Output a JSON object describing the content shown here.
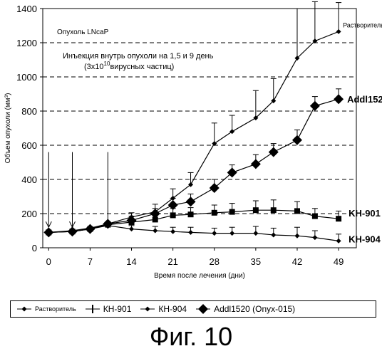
{
  "chart_data": {
    "type": "line",
    "ylabel": "Объем опухоли (мм³)",
    "xlabel": "Время после лечения (дни)",
    "xticks": [
      0,
      7,
      14,
      21,
      28,
      35,
      42,
      49
    ],
    "yticks": [
      0,
      200,
      400,
      600,
      800,
      1000,
      1200,
      1400
    ],
    "xlim": [
      -1,
      52
    ],
    "ylim": [
      0,
      1400
    ],
    "grid": "horizontal dashed",
    "annotations": {
      "tumor": "Опухоль LNcaP",
      "injection_line1": "Инъекция внутрь опухоли на 1,5 и 9 день",
      "injection_line2_pre": "(3x10",
      "injection_line2_sup": "10",
      "injection_line2_post": "вирусных частиц)"
    },
    "arrows_x": [
      0,
      4,
      10
    ],
    "series": [
      {
        "name": "Растворитель",
        "end_label": "Растворитель",
        "color": "#000000",
        "marker": "small-diamond",
        "x": [
          0,
          4,
          7,
          10,
          14,
          18,
          21,
          24,
          28,
          31,
          35,
          38,
          42,
          45,
          49
        ],
        "values": [
          90,
          100,
          115,
          140,
          180,
          210,
          290,
          370,
          610,
          680,
          760,
          860,
          1110,
          1210,
          1265
        ],
        "errors": [
          0,
          0,
          0,
          0,
          25,
          45,
          55,
          70,
          120,
          95,
          160,
          130,
          290,
          230,
          170
        ]
      },
      {
        "name": "КН-901",
        "end_label": "KH-901",
        "color": "#000000",
        "marker": "square",
        "x": [
          0,
          4,
          7,
          10,
          14,
          18,
          21,
          24,
          28,
          31,
          35,
          38,
          42,
          45,
          49
        ],
        "values": [
          90,
          95,
          110,
          135,
          150,
          165,
          190,
          195,
          205,
          210,
          220,
          220,
          215,
          185,
          170
        ],
        "errors": [
          0,
          0,
          0,
          0,
          20,
          30,
          40,
          40,
          45,
          50,
          55,
          60,
          55,
          45,
          45
        ]
      },
      {
        "name": "КН-904",
        "end_label": "KH-904",
        "color": "#000000",
        "marker": "small-diamond",
        "x": [
          0,
          4,
          7,
          10,
          14,
          18,
          21,
          24,
          28,
          31,
          35,
          38,
          42,
          45,
          49
        ],
        "values": [
          90,
          95,
          110,
          130,
          110,
          100,
          95,
          90,
          85,
          85,
          85,
          75,
          70,
          60,
          40
        ],
        "errors": [
          0,
          0,
          0,
          0,
          20,
          25,
          25,
          30,
          30,
          35,
          40,
          40,
          50,
          40,
          40
        ]
      },
      {
        "name": "Addl1520 (Onyx-015)",
        "end_label": "Addl1520",
        "color": "#000000",
        "marker": "diamond",
        "x": [
          0,
          4,
          7,
          10,
          14,
          18,
          21,
          24,
          28,
          31,
          35,
          38,
          42,
          45,
          49
        ],
        "values": [
          90,
          95,
          110,
          140,
          160,
          200,
          250,
          270,
          350,
          440,
          490,
          560,
          630,
          830,
          870
        ],
        "errors": [
          0,
          0,
          0,
          0,
          25,
          30,
          40,
          45,
          50,
          45,
          55,
          50,
          60,
          55,
          60
        ]
      }
    ]
  },
  "legend": [
    {
      "label": "Растворитель",
      "marker": "small-diamond",
      "small": true
    },
    {
      "label": "КН-901",
      "marker": "cross"
    },
    {
      "label": "КН-904",
      "marker": "small-diamond"
    },
    {
      "label": "Addl1520 (Onyx-015)",
      "marker": "diamond"
    }
  ],
  "caption": "Фиг. 10"
}
